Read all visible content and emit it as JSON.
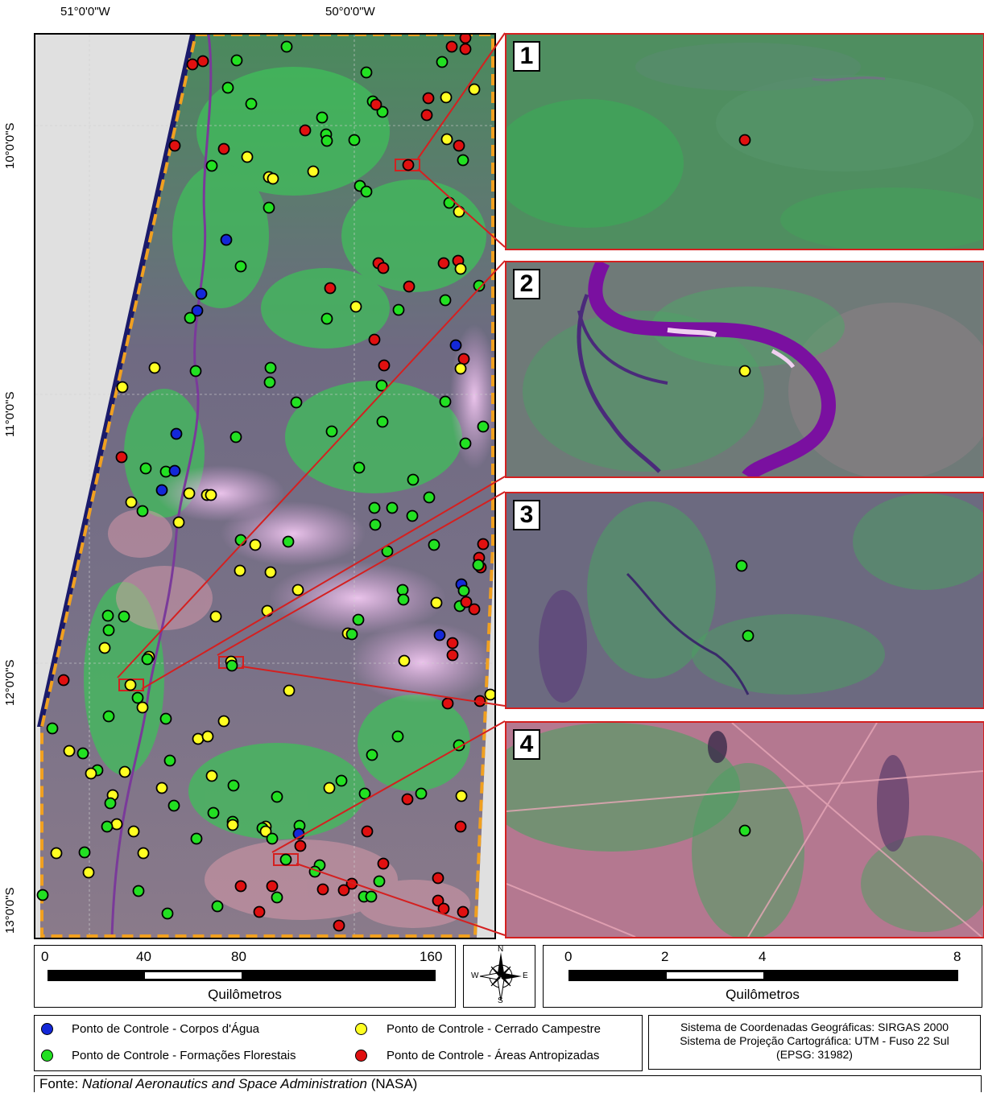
{
  "coords": {
    "lon_west": "51°0'0\"W",
    "lon_east": "50°0'0\"W",
    "lat": [
      "10°0'0\"S",
      "11°0'0\"S",
      "12°0'0\"S",
      "13°0'0\"S"
    ]
  },
  "insets": [
    {
      "label": "1",
      "point_class": "antropizada"
    },
    {
      "label": "2",
      "point_class": "cerrado"
    },
    {
      "label": "3",
      "point_class": "florestal"
    },
    {
      "label": "4",
      "point_class": "florestal"
    }
  ],
  "scale_main": {
    "ticks": [
      "0",
      "40",
      "80",
      "160"
    ],
    "unit": "Quilômetros"
  },
  "scale_inset": {
    "ticks": [
      "0",
      "2",
      "4",
      "8"
    ],
    "unit": "Quilômetros"
  },
  "north_arrow": {
    "n": "N",
    "s": "S",
    "e": "E",
    "w": "W"
  },
  "legend": {
    "agua": "Ponto de Controle - Corpos d'Água",
    "florestal": "Ponto de Controle - Formações Florestais",
    "cerrado": "Ponto de Controle - Cerrado Campestre",
    "antropizada": "Ponto de Controle - Áreas Antropizadas"
  },
  "colors": {
    "agua": "#1428d8",
    "florestal": "#22e022",
    "cerrado": "#ffff22",
    "antropizada": "#e01010",
    "frame_red": "#d42020",
    "boundary_orange": "#f0a020"
  },
  "system_info": {
    "line1": "Sistema de Coordenadas Geográficas: SIRGAS 2000",
    "line2": "Sistema de Projeção Cartográfica: UTM - Fuso 22 Sul",
    "line3": "(EPSG: 31982)"
  },
  "source": {
    "prefix": "Fonte: ",
    "agency": "National Aeronautics and Space Administration",
    "suffix": " (NASA)"
  }
}
